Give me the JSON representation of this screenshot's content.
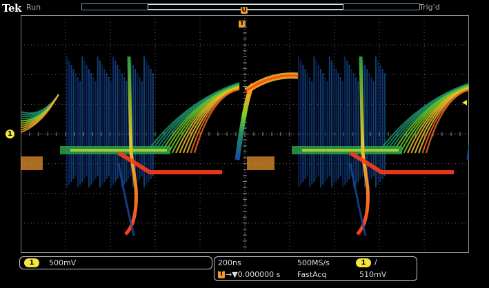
{
  "header": {
    "brand": "Tek",
    "run_state": "Run",
    "trigger_state": "Trig'd",
    "record_pointer_label": "U",
    "trigger_pointer_label": "T"
  },
  "markers": {
    "channel_marker": "1"
  },
  "channel": {
    "number": "1",
    "scale": "500mV"
  },
  "timebase": {
    "scale": "200ns",
    "sample_rate": "500MS/s",
    "position_icon": "T",
    "position": "→▼0.000000 s",
    "mode": "FastAcq"
  },
  "trigger": {
    "source": "1",
    "slope_symbol": "∕",
    "level": "510mV"
  },
  "colors": {
    "graticule": "#8a8a8a",
    "channel1": "#f4e63a",
    "pointer": "#f29a2e",
    "frame": "#7a95b0"
  }
}
